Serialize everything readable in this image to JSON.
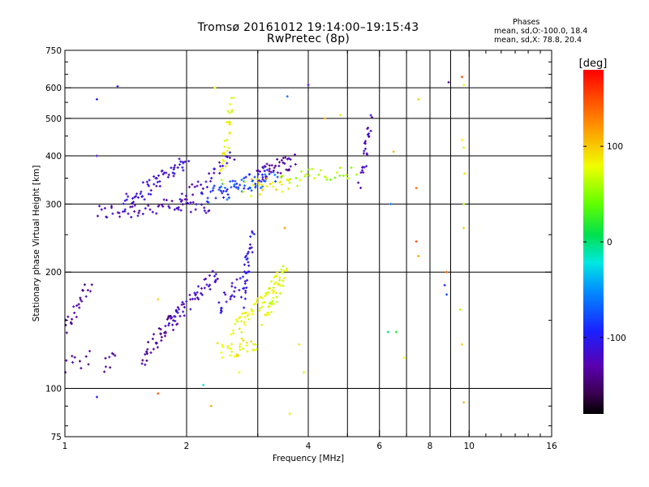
{
  "chart_data": {
    "type": "scatter",
    "title": "Tromsø 20161012 19:14:00–19:15:43",
    "subtitle": "RwPretec (8p)",
    "xlabel": "Frequency [MHz]",
    "ylabel": "Stationary phase Virtual Height [km]",
    "x_scale": "log",
    "y_scale": "log",
    "xlim": [
      1,
      16
    ],
    "ylim": [
      75,
      750
    ],
    "x_ticks": [
      1,
      2,
      4,
      6,
      8,
      10,
      16
    ],
    "y_ticks": [
      75,
      100,
      200,
      300,
      400,
      500,
      600,
      750
    ],
    "x_grid": [
      2,
      3,
      4,
      5,
      6,
      7,
      8,
      9,
      10
    ],
    "y_grid": [
      100,
      200,
      300,
      400,
      500,
      600
    ],
    "colorbar": {
      "label": "[deg]",
      "ticks": [
        100,
        0,
        -100
      ],
      "range": [
        -180,
        180
      ]
    },
    "phases": {
      "title": "Phases",
      "o_line": "mean, sd,O:-100.0, 18.4",
      "x_line": "mean, sd,X:  78.8, 20.4"
    },
    "traces": [
      {
        "kind": "curve",
        "phase": -125,
        "x0": 1.2,
        "x1": 2.3,
        "h0": 285,
        "h1": 300,
        "n": 55
      },
      {
        "kind": "curve",
        "phase": -115,
        "x0": 1.4,
        "x1": 2.0,
        "h0": 300,
        "h1": 390,
        "n": 60
      },
      {
        "kind": "curve",
        "phase": -120,
        "x0": 1.9,
        "x1": 2.6,
        "h0": 300,
        "h1": 400,
        "n": 35
      },
      {
        "kind": "curve",
        "phase": -90,
        "x0": 2.2,
        "x1": 3.2,
        "h0": 310,
        "h1": 360,
        "n": 45
      },
      {
        "kind": "curve",
        "phase": -70,
        "x0": 2.4,
        "x1": 3.4,
        "h0": 320,
        "h1": 360,
        "n": 30
      },
      {
        "kind": "curve",
        "phase": -130,
        "x0": 3.0,
        "x1": 3.7,
        "h0": 360,
        "h1": 390,
        "n": 40
      },
      {
        "kind": "curve",
        "phase": 80,
        "x0": 2.45,
        "x1": 2.6,
        "h0": 350,
        "h1": 560,
        "n": 30
      },
      {
        "kind": "curve",
        "phase": 90,
        "x0": 2.8,
        "x1": 3.6,
        "h0": 330,
        "h1": 340,
        "n": 25
      },
      {
        "kind": "curve",
        "phase": 60,
        "x0": 3.5,
        "x1": 5.2,
        "h0": 350,
        "h1": 360,
        "n": 30
      },
      {
        "kind": "curve",
        "phase": -120,
        "x0": 5.4,
        "x1": 5.7,
        "h0": 340,
        "h1": 490,
        "n": 25
      },
      {
        "kind": "curve",
        "phase": -135,
        "x0": 1.0,
        "x1": 1.15,
        "h0": 140,
        "h1": 190,
        "n": 25
      },
      {
        "kind": "curve",
        "phase": -140,
        "x0": 1.0,
        "x1": 1.15,
        "h0": 115,
        "h1": 120,
        "n": 10
      },
      {
        "kind": "curve",
        "phase": -130,
        "x0": 1.25,
        "x1": 1.35,
        "h0": 115,
        "h1": 120,
        "n": 8
      },
      {
        "kind": "curve",
        "phase": -135,
        "x0": 1.55,
        "x1": 1.9,
        "h0": 120,
        "h1": 155,
        "n": 40
      },
      {
        "kind": "curve",
        "phase": -120,
        "x0": 1.8,
        "x1": 2.4,
        "h0": 145,
        "h1": 200,
        "n": 50
      },
      {
        "kind": "curve",
        "phase": -110,
        "x0": 2.4,
        "x1": 2.7,
        "h0": 160,
        "h1": 190,
        "n": 20
      },
      {
        "kind": "curve",
        "phase": -105,
        "x0": 2.75,
        "x1": 2.9,
        "h0": 170,
        "h1": 250,
        "n": 35
      },
      {
        "kind": "curve",
        "phase": 85,
        "x0": 2.4,
        "x1": 3.0,
        "h0": 125,
        "h1": 130,
        "n": 30
      },
      {
        "kind": "curve",
        "phase": 80,
        "x0": 2.6,
        "x1": 3.5,
        "h0": 140,
        "h1": 200,
        "n": 60
      },
      {
        "kind": "curve",
        "phase": 75,
        "x0": 3.1,
        "x1": 3.5,
        "h0": 150,
        "h1": 200,
        "n": 30
      }
    ],
    "scatter": [
      [
        1.2,
        560,
        -100
      ],
      [
        1.35,
        605,
        -110
      ],
      [
        2.35,
        600,
        80
      ],
      [
        3.55,
        570,
        -60
      ],
      [
        4.4,
        500,
        110
      ],
      [
        4.8,
        510,
        70
      ],
      [
        5.6,
        470,
        -130
      ],
      [
        7.5,
        560,
        100
      ],
      [
        8.9,
        620,
        -140
      ],
      [
        9.6,
        640,
        150
      ],
      [
        9.7,
        610,
        80
      ],
      [
        6.5,
        410,
        110
      ],
      [
        7.4,
        330,
        140
      ],
      [
        7.4,
        240,
        150
      ],
      [
        7.5,
        220,
        120
      ],
      [
        9.6,
        440,
        80
      ],
      [
        9.7,
        420,
        70
      ],
      [
        9.75,
        360,
        90
      ],
      [
        9.7,
        300,
        60
      ],
      [
        9.7,
        260,
        100
      ],
      [
        8.8,
        200,
        140
      ],
      [
        8.7,
        185,
        -90
      ],
      [
        8.8,
        175,
        -80
      ],
      [
        9.5,
        160,
        60
      ],
      [
        9.6,
        130,
        100
      ],
      [
        9.7,
        92,
        110
      ],
      [
        1.7,
        97,
        150
      ],
      [
        2.3,
        90,
        120
      ],
      [
        2.2,
        102,
        -20
      ],
      [
        3.6,
        86,
        90
      ],
      [
        1.2,
        95,
        -100
      ],
      [
        6.4,
        300,
        -60
      ],
      [
        6.3,
        140,
        0
      ],
      [
        6.6,
        140,
        20
      ],
      [
        6.9,
        120,
        80
      ],
      [
        3.9,
        110,
        70
      ],
      [
        3.8,
        130,
        90
      ],
      [
        2.7,
        110,
        80
      ],
      [
        1.7,
        170,
        100
      ],
      [
        1.2,
        400,
        -120
      ],
      [
        4.0,
        610,
        -120
      ],
      [
        3.5,
        260,
        120
      ]
    ]
  }
}
